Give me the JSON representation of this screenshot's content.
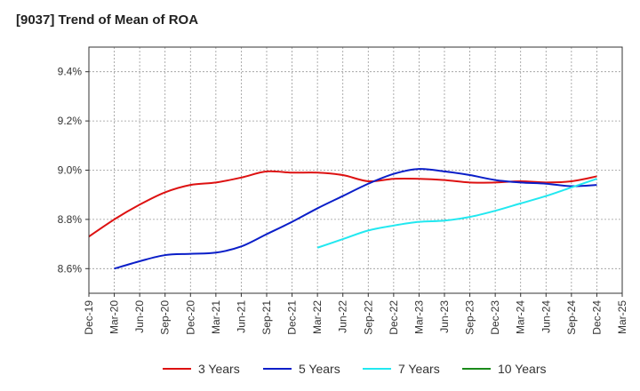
{
  "chart_data": {
    "type": "line",
    "title": "[9037]  Trend of Mean of ROA",
    "xlabel": "",
    "ylabel": "",
    "x": [
      "Dec-19",
      "Mar-20",
      "Jun-20",
      "Sep-20",
      "Dec-20",
      "Mar-21",
      "Jun-21",
      "Sep-21",
      "Dec-21",
      "Mar-22",
      "Jun-22",
      "Sep-22",
      "Dec-22",
      "Mar-23",
      "Jun-23",
      "Sep-23",
      "Dec-23",
      "Mar-24",
      "Jun-24",
      "Sep-24",
      "Dec-24",
      "Mar-25"
    ],
    "ylim": [
      8.5,
      9.5
    ],
    "yticks": [
      8.6,
      8.8,
      9.0,
      9.2,
      9.4
    ],
    "ytick_labels": [
      "8.6%",
      "8.8%",
      "9.0%",
      "9.2%",
      "9.4%"
    ],
    "grid": true,
    "legend_position": "bottom",
    "series": [
      {
        "name": "3 Years",
        "color": "#dd1111",
        "values": [
          8.73,
          8.8,
          8.86,
          8.91,
          8.94,
          8.95,
          8.97,
          8.995,
          8.99,
          8.99,
          8.98,
          8.955,
          8.965,
          8.965,
          8.96,
          8.95,
          8.95,
          8.955,
          8.95,
          8.955,
          8.975,
          null
        ]
      },
      {
        "name": "5 Years",
        "color": "#0a1ec8",
        "values": [
          null,
          8.6,
          8.63,
          8.655,
          8.66,
          8.665,
          8.69,
          8.74,
          8.79,
          8.845,
          8.895,
          8.945,
          8.985,
          9.005,
          8.995,
          8.98,
          8.96,
          8.95,
          8.945,
          8.935,
          8.94,
          null
        ]
      },
      {
        "name": "7 Years",
        "color": "#22e8f0",
        "values": [
          null,
          null,
          null,
          null,
          null,
          null,
          null,
          null,
          null,
          8.685,
          8.72,
          8.755,
          8.775,
          8.79,
          8.795,
          8.81,
          8.835,
          8.865,
          8.895,
          8.93,
          8.965,
          null
        ]
      },
      {
        "name": "10 Years",
        "color": "#1a8a1a",
        "values": [
          null,
          null,
          null,
          null,
          null,
          null,
          null,
          null,
          null,
          null,
          null,
          null,
          null,
          null,
          null,
          null,
          null,
          null,
          null,
          null,
          null,
          null
        ]
      }
    ]
  }
}
